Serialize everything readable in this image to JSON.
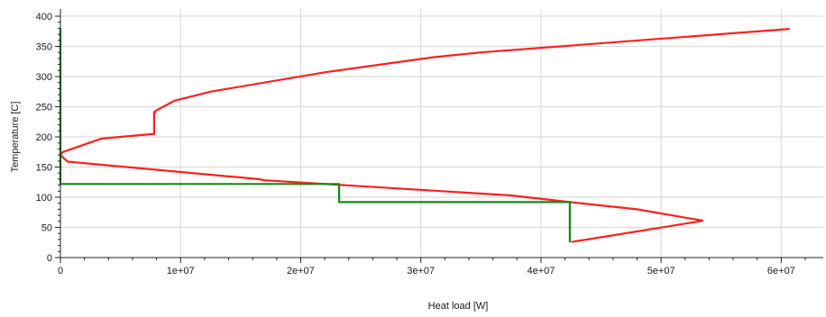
{
  "chart_data": {
    "type": "line",
    "title": "",
    "xlabel": "Heat load [W]",
    "ylabel": "Temperature [C]",
    "xlim": [
      0,
      63500000
    ],
    "ylim": [
      0,
      400
    ],
    "x_ticks": [
      0,
      10000000,
      20000000,
      30000000,
      40000000,
      50000000,
      60000000
    ],
    "x_tick_labels": [
      "0",
      "1e+07",
      "2e+07",
      "3e+07",
      "4e+07",
      "5e+07",
      "6e+07"
    ],
    "y_ticks": [
      0,
      50,
      100,
      150,
      200,
      250,
      300,
      350,
      400
    ],
    "y_tick_labels": [
      "0",
      "50",
      "100",
      "150",
      "200",
      "250",
      "300",
      "350",
      "400"
    ],
    "grid": true,
    "legend": "none",
    "series": [
      {
        "color": "#ff2020",
        "x": [
          60700000,
          35000000,
          31000000,
          22000000,
          12500000,
          9500000,
          7900000,
          7900000,
          7800000,
          7800000,
          5000000,
          3400000,
          200000,
          0,
          600000,
          16500000,
          17000000,
          37500000,
          42400000,
          48000000,
          53500000,
          42600000,
          42600000
        ],
        "y": [
          379,
          340,
          332,
          307,
          275,
          260,
          243,
          241,
          241,
          205,
          200,
          197,
          175,
          170,
          159,
          130,
          128,
          103,
          92,
          80,
          61,
          26,
          25
        ]
      },
      {
        "color": "#138a13",
        "x": [
          0,
          0,
          23200000,
          23200000,
          42400000,
          42400000
        ],
        "y": [
          380,
          122,
          122,
          92,
          92,
          25
        ]
      }
    ]
  }
}
